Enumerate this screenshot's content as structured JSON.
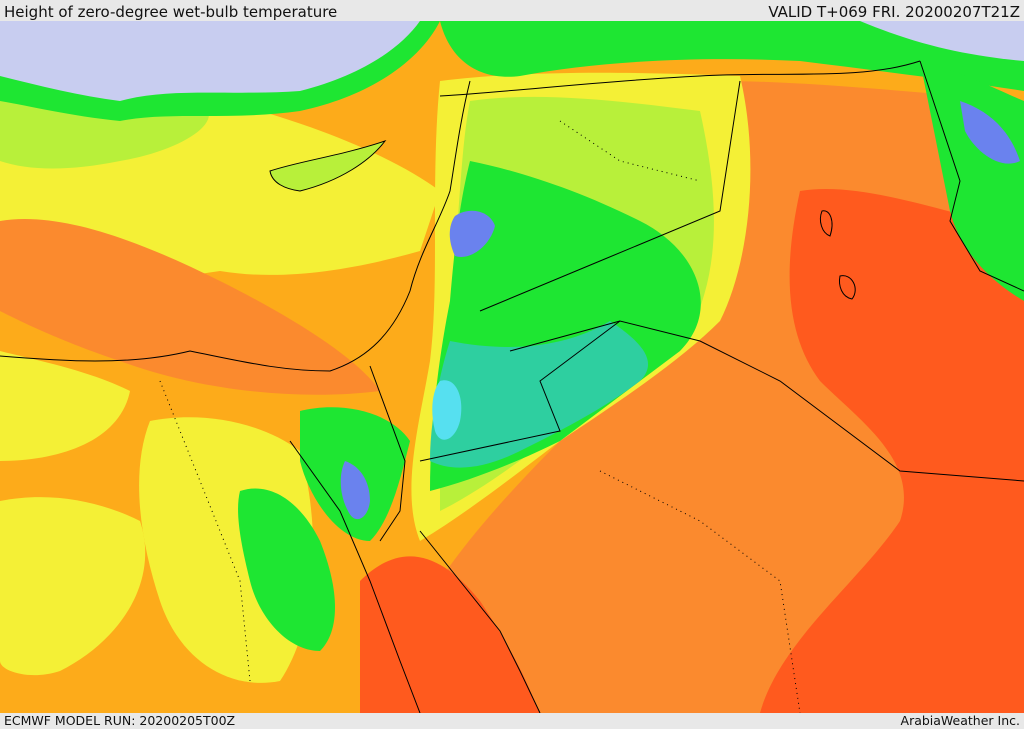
{
  "header": {
    "title": "Height of zero-degree wet-bulb temperature",
    "valid": "VALID T+069 FRI. 20200207T21Z"
  },
  "footer": {
    "model_run": "ECMWF MODEL RUN: 20200205T00Z",
    "credit": "ArabiaWeather Inc."
  },
  "colors": {
    "very_high": "#ff5a1e",
    "high": "#fb8a2e",
    "mid_high": "#fdab1a",
    "mid": "#f4f036",
    "mid_low": "#b8f03a",
    "low": "#1ee632",
    "lower": "#2ecfa0",
    "very_low": "#56e0f0",
    "lowest": "#6a82ee",
    "min": "#c8cdf0",
    "borders": "#000000"
  }
}
